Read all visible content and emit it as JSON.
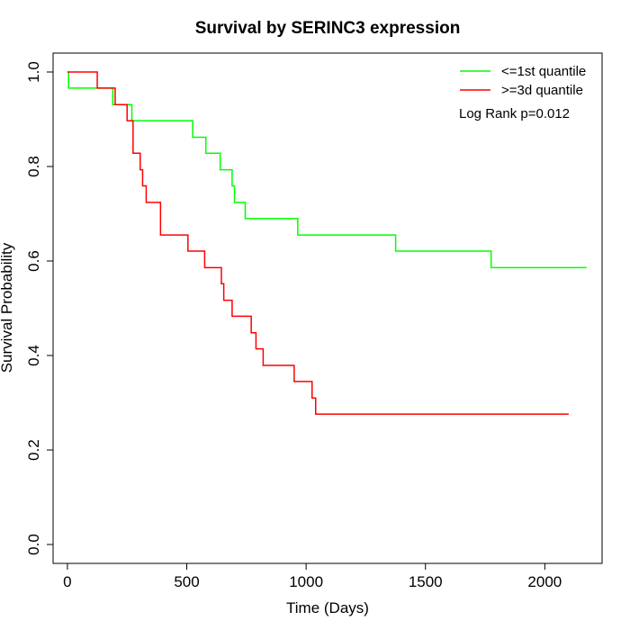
{
  "chart_data": {
    "type": "line",
    "title": "Survival by SERINC3 expression",
    "xlabel": "Time (Days)",
    "ylabel": "Survival Probability",
    "xlim": [
      -60,
      2240
    ],
    "ylim": [
      -0.04,
      1.04
    ],
    "x_ticks": [
      0,
      500,
      1000,
      1500,
      2000
    ],
    "y_ticks": [
      0.0,
      0.2,
      0.4,
      0.6,
      0.8,
      1.0
    ],
    "x_tick_labels": [
      "0",
      "500",
      "1000",
      "1500",
      "2000"
    ],
    "y_tick_labels": [
      "0.0",
      "0.2",
      "0.4",
      "0.6",
      "0.8",
      "1.0"
    ],
    "grid": false,
    "legend_position": "top-right",
    "annotation": "Log Rank p=0.012",
    "series": [
      {
        "name": "<=1st quantile",
        "color": "#00ff00",
        "step_x": [
          0,
          5,
          190,
          270,
          525,
          580,
          640,
          690,
          700,
          745,
          965,
          1375,
          1775,
          2175
        ],
        "step_y": [
          1.0,
          0.966,
          0.931,
          0.897,
          0.862,
          0.828,
          0.793,
          0.759,
          0.724,
          0.69,
          0.655,
          0.621,
          0.586,
          0.586
        ]
      },
      {
        "name": ">=3d quantile",
        "color": "#ff0000",
        "step_x": [
          0,
          125,
          200,
          250,
          275,
          305,
          315,
          330,
          390,
          505,
          575,
          645,
          655,
          690,
          770,
          790,
          820,
          950,
          1025,
          1040,
          2100
        ],
        "step_y": [
          1.0,
          0.966,
          0.931,
          0.897,
          0.828,
          0.793,
          0.759,
          0.724,
          0.655,
          0.621,
          0.586,
          0.552,
          0.517,
          0.483,
          0.448,
          0.414,
          0.379,
          0.345,
          0.31,
          0.276,
          0.276
        ]
      }
    ]
  }
}
